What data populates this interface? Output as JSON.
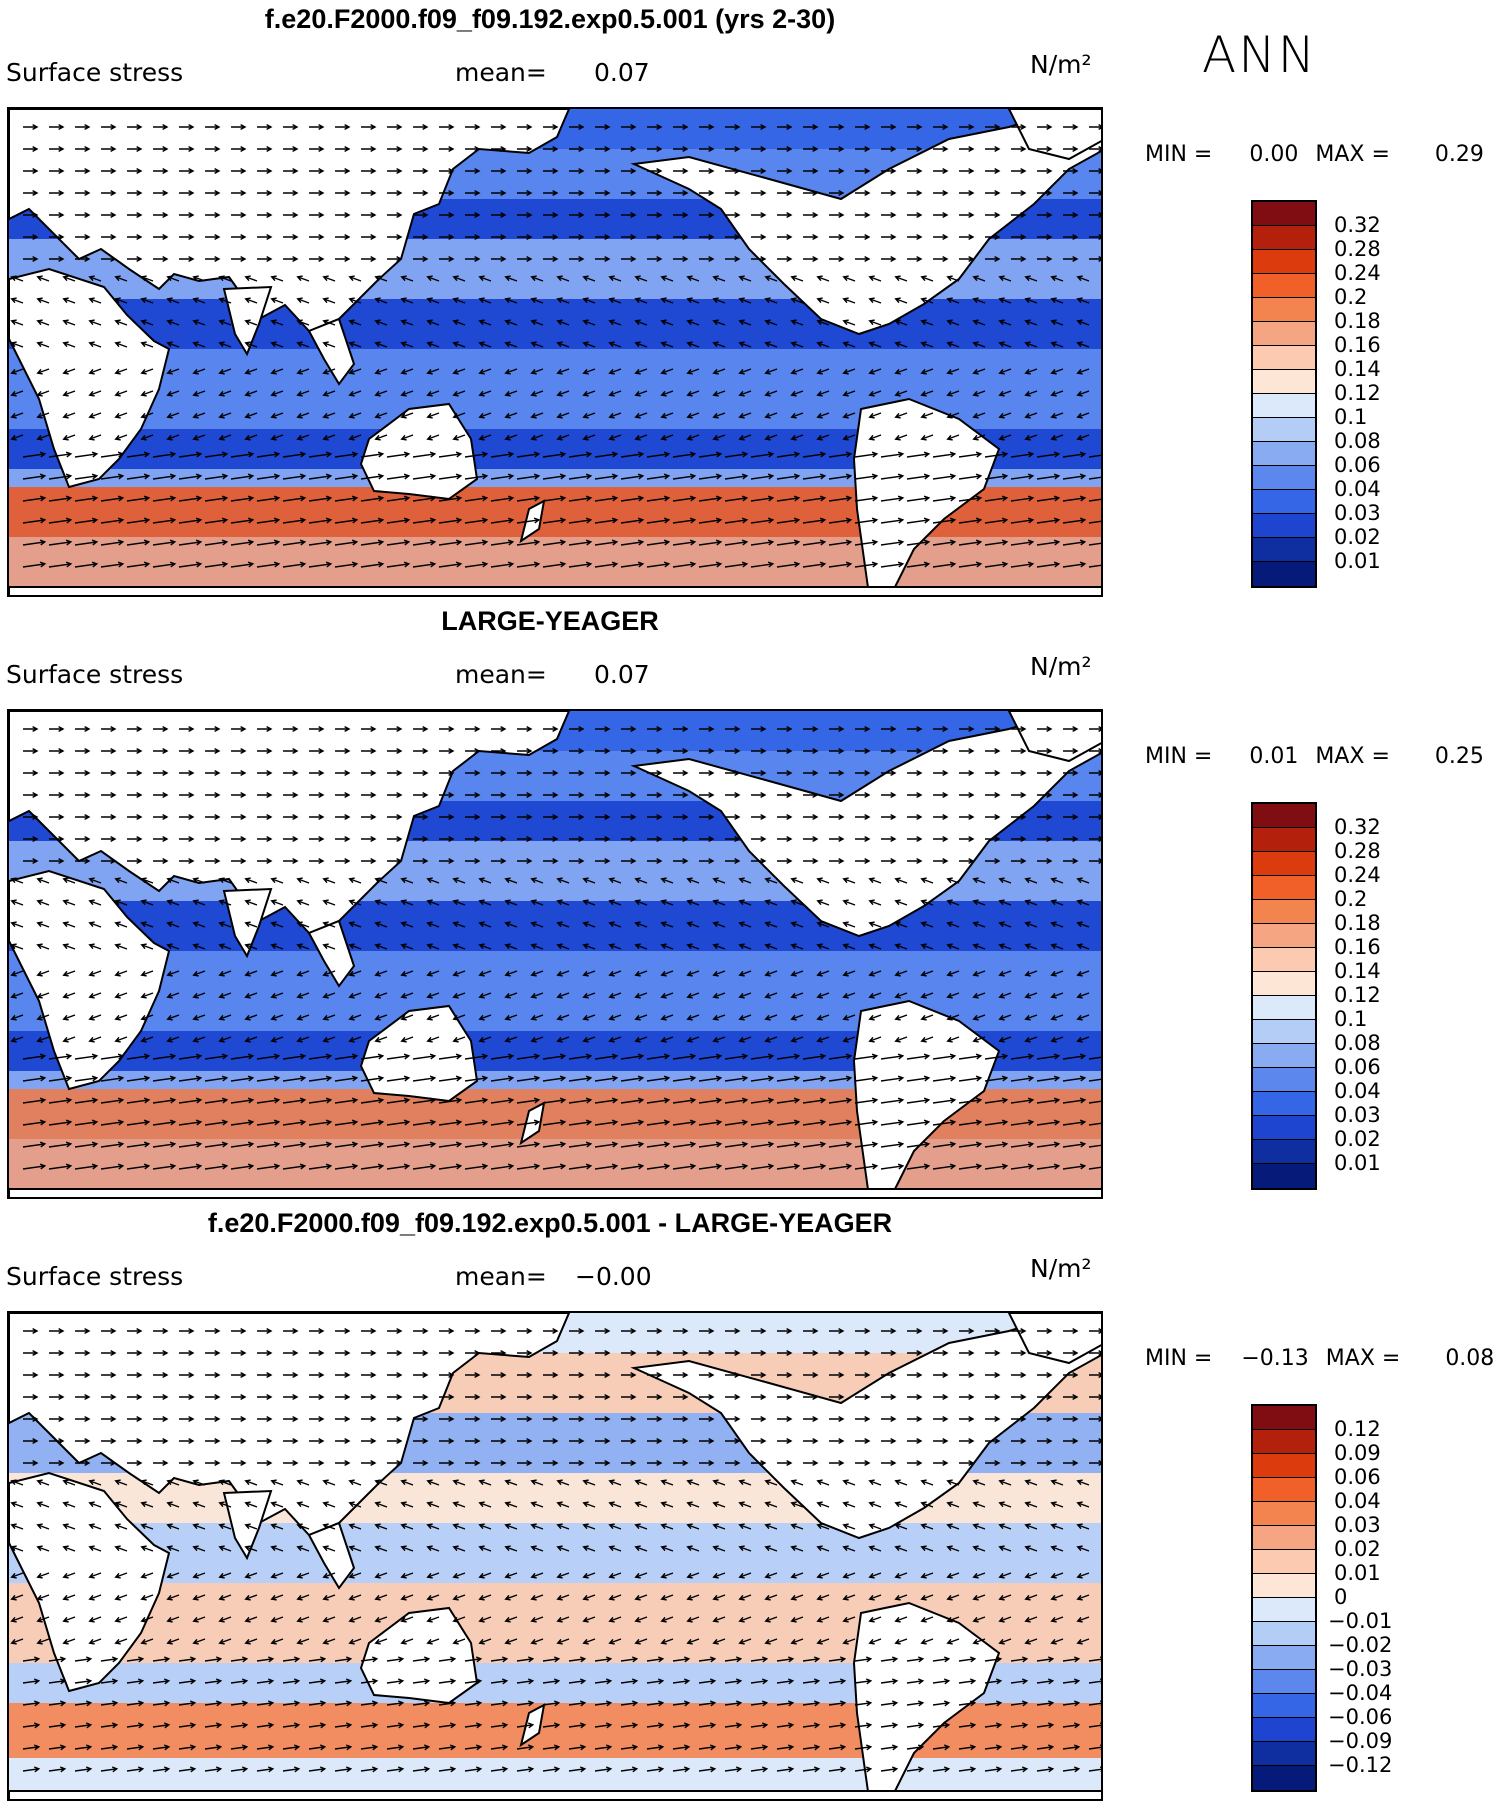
{
  "season": "ANN",
  "panels": [
    {
      "title": "f.e20.F2000.f09_f09.192.exp0.5.001 (yrs 2-30)",
      "variable": "Surface stress",
      "mean_label": "mean=",
      "mean_value": "0.07",
      "units": "N/m²",
      "min_label": "MIN =",
      "min_value": "0.00",
      "max_label": "MAX =",
      "max_value": "0.29",
      "colorbar": [
        "0.32",
        "0.28",
        "0.24",
        "0.2",
        "0.18",
        "0.16",
        "0.14",
        "0.12",
        "0.1",
        "0.08",
        "0.06",
        "0.04",
        "0.03",
        "0.02",
        "0.01"
      ],
      "colors": [
        "#7f0d12",
        "#b3210c",
        "#dc3b0d",
        "#f26029",
        "#f3834f",
        "#f6a582",
        "#fbcab0",
        "#fde6d5",
        "#dbe9fb",
        "#b4cdf7",
        "#88abf2",
        "#5c88ee",
        "#3566e6",
        "#1d45d0",
        "#0f2fa0",
        "#061a7a"
      ]
    },
    {
      "title": "LARGE-YEAGER",
      "variable": "Surface stress",
      "mean_label": "mean=",
      "mean_value": "0.07",
      "units": "N/m²",
      "min_label": "MIN =",
      "min_value": "0.01",
      "max_label": "MAX =",
      "max_value": "0.25",
      "colorbar": [
        "0.32",
        "0.28",
        "0.24",
        "0.2",
        "0.18",
        "0.16",
        "0.14",
        "0.12",
        "0.1",
        "0.08",
        "0.06",
        "0.04",
        "0.03",
        "0.02",
        "0.01"
      ],
      "colors": [
        "#7f0d12",
        "#b3210c",
        "#dc3b0d",
        "#f26029",
        "#f3834f",
        "#f6a582",
        "#fbcab0",
        "#fde6d5",
        "#dbe9fb",
        "#b4cdf7",
        "#88abf2",
        "#5c88ee",
        "#3566e6",
        "#1d45d0",
        "#0f2fa0",
        "#061a7a"
      ]
    },
    {
      "title": "f.e20.F2000.f09_f09.192.exp0.5.001 - LARGE-YEAGER",
      "variable": "Surface stress",
      "mean_label": "mean=",
      "mean_value": "−0.00",
      "units": "N/m²",
      "min_label": "MIN =",
      "min_value": "−0.13",
      "max_label": "MAX =",
      "max_value": "0.08",
      "colorbar": [
        "0.12",
        "0.09",
        "0.06",
        "0.04",
        "0.03",
        "0.02",
        "0.01",
        "0",
        "−0.01",
        "−0.02",
        "−0.03",
        "−0.04",
        "−0.06",
        "−0.09",
        "−0.12"
      ],
      "colors": [
        "#7f0d12",
        "#b3210c",
        "#dc3b0d",
        "#f26029",
        "#f3834f",
        "#f6a582",
        "#fbcab0",
        "#fde6d5",
        "#dbe9fb",
        "#b4cdf7",
        "#88abf2",
        "#5c88ee",
        "#3566e6",
        "#1d45d0",
        "#0f2fa0",
        "#061a7a"
      ]
    }
  ]
}
